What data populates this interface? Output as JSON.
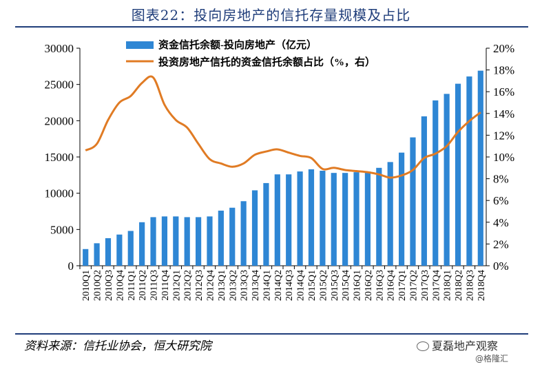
{
  "title": "图表22：投向房地产的信托存量规模及占比",
  "source": "资料来源：信托业协会，恒大研究院",
  "watermark": {
    "account": "夏磊地产观察",
    "platform": "@格隆汇"
  },
  "chart_data": {
    "type": "bar+line",
    "categories": [
      "2010Q1",
      "2010Q2",
      "2010Q3",
      "2010Q4",
      "2011Q1",
      "2011Q2",
      "2011Q3",
      "2011Q4",
      "2012Q1",
      "2012Q2",
      "2012Q3",
      "2012Q4",
      "2013Q1",
      "2013Q2",
      "2013Q3",
      "2013Q4",
      "2014Q1",
      "2014Q2",
      "2014Q3",
      "2014Q4",
      "2015Q1",
      "2015Q2",
      "2015Q3",
      "2015Q4",
      "2016Q1",
      "2016Q2",
      "2016Q3",
      "2016Q4",
      "2017Q1",
      "2017Q2",
      "2017Q3",
      "2017Q4",
      "2018Q1",
      "2018Q2",
      "2018Q3",
      "2018Q4"
    ],
    "series": [
      {
        "name": "资金信托余额-投向房地产（亿元）",
        "type": "bar",
        "axis": "left",
        "color": "#2e86d4",
        "values": [
          2300,
          3100,
          3800,
          4300,
          4800,
          6000,
          6700,
          6800,
          6800,
          6700,
          6700,
          6800,
          7600,
          8000,
          8900,
          10400,
          11400,
          12600,
          12600,
          13000,
          13300,
          13100,
          12800,
          12800,
          12900,
          13000,
          13500,
          14300,
          15600,
          17700,
          20600,
          22800,
          23700,
          25100,
          26100,
          26900
        ]
      },
      {
        "name": "投资房地产信托的资金信托余额占比（%，右）",
        "type": "line",
        "axis": "right",
        "color": "#e07b24",
        "values": [
          10.6,
          11.2,
          13.4,
          15.0,
          15.6,
          16.8,
          17.3,
          14.8,
          13.4,
          12.7,
          11.2,
          9.8,
          9.4,
          9.1,
          9.4,
          10.2,
          10.5,
          10.7,
          10.4,
          10.1,
          9.9,
          8.9,
          9.0,
          8.8,
          8.7,
          8.6,
          8.4,
          8.1,
          8.3,
          8.8,
          9.9,
          10.3,
          11.0,
          12.3,
          13.3,
          14.1
        ]
      }
    ],
    "y_left": {
      "min": 0,
      "max": 30000,
      "ticks": [
        "0",
        "5000",
        "10000",
        "15000",
        "20000",
        "25000",
        "30000"
      ]
    },
    "y_right": {
      "min": 0,
      "max": 20,
      "ticks": [
        "0%",
        "2%",
        "4%",
        "6%",
        "8%",
        "10%",
        "12%",
        "14%",
        "16%",
        "18%",
        "20%"
      ]
    },
    "grid": false,
    "legend": "top-left"
  }
}
